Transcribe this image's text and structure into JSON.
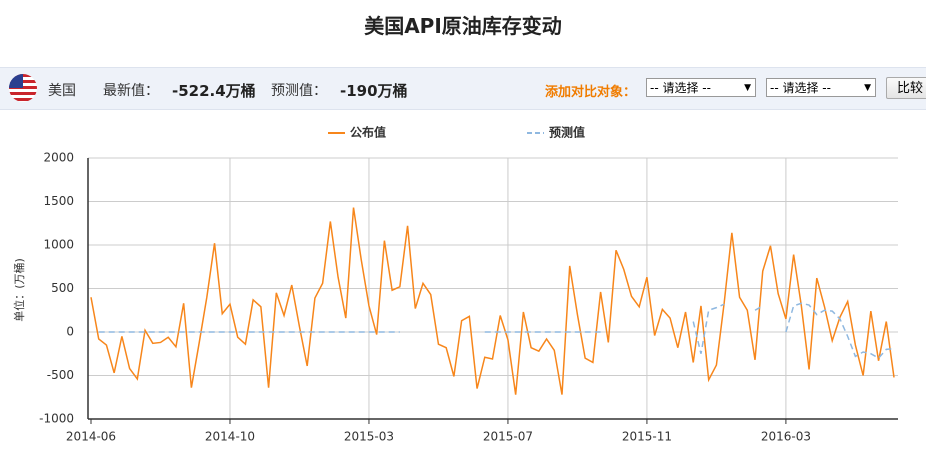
{
  "header": {
    "title": "美国API原油库存变动"
  },
  "info": {
    "country": "美国",
    "latest_label": "最新值：",
    "latest_value": "-522.4万桶",
    "forecast_label": "预测值：",
    "forecast_value": "-190万桶",
    "compare_label": "添加对比对象：",
    "select_1": "-- 请选择 --",
    "select_2": "-- 请选择 --",
    "button": "比较"
  },
  "chart_data": {
    "type": "line",
    "y_label": "单位：(万桶)",
    "ylim": [
      -1000,
      2000
    ],
    "yticks": [
      -1000,
      -500,
      0,
      500,
      1000,
      1500,
      2000
    ],
    "grid": true,
    "legend": "top",
    "categories": [
      "2014-06",
      null,
      null,
      null,
      null,
      null,
      null,
      null,
      null,
      null,
      null,
      null,
      null,
      null,
      null,
      null,
      null,
      null,
      "2014-10",
      null,
      null,
      null,
      null,
      null,
      null,
      null,
      null,
      null,
      null,
      null,
      null,
      null,
      null,
      null,
      null,
      null,
      "2015-03",
      null,
      null,
      null,
      null,
      null,
      null,
      null,
      null,
      null,
      null,
      null,
      null,
      null,
      null,
      null,
      null,
      null,
      "2015-07",
      null,
      null,
      null,
      null,
      null,
      null,
      null,
      null,
      null,
      null,
      null,
      null,
      null,
      null,
      null,
      null,
      null,
      "2015-11",
      null,
      null,
      null,
      null,
      null,
      null,
      null,
      null,
      null,
      null,
      null,
      null,
      null,
      null,
      null,
      null,
      null,
      "2016-03",
      null,
      null,
      null,
      null,
      null,
      null,
      null,
      null,
      null,
      null,
      null,
      null,
      null,
      null
    ],
    "series": [
      {
        "name": "公布值",
        "color": "#f7861b",
        "dashed": false,
        "values": [
          400,
          -80,
          -150,
          -470,
          -50,
          -420,
          -540,
          20,
          -130,
          -120,
          -60,
          -170,
          330,
          -640,
          -130,
          400,
          1020,
          210,
          320,
          -60,
          -140,
          370,
          290,
          -640,
          450,
          190,
          540,
          60,
          -390,
          390,
          560,
          1270,
          630,
          160,
          1430,
          830,
          300,
          -30,
          1050,
          480,
          520,
          1220,
          270,
          560,
          430,
          -140,
          -180,
          -510,
          130,
          180,
          -650,
          -290,
          -310,
          190,
          -90,
          -720,
          230,
          -180,
          -220,
          -80,
          -210,
          -720,
          760,
          200,
          -300,
          -350,
          460,
          -120,
          940,
          720,
          410,
          290,
          630,
          -40,
          260,
          160,
          -180,
          230,
          -350,
          300,
          -550,
          -380,
          330,
          1140,
          400,
          250,
          -320,
          700,
          990,
          440,
          150,
          890,
          300,
          -430,
          620,
          290,
          -100,
          170,
          350,
          -150,
          -500,
          240,
          -330,
          120,
          -522.4
        ]
      },
      {
        "name": "预测值",
        "color": "#8fb8e0",
        "dashed": true,
        "values": [
          null,
          0,
          0,
          0,
          0,
          0,
          0,
          0,
          0,
          0,
          0,
          0,
          0,
          0,
          0,
          0,
          0,
          0,
          0,
          0,
          0,
          0,
          0,
          0,
          0,
          0,
          0,
          0,
          0,
          0,
          0,
          0,
          0,
          0,
          0,
          0,
          0,
          0,
          0,
          0,
          0,
          null,
          null,
          null,
          null,
          null,
          null,
          null,
          null,
          null,
          null,
          0,
          0,
          0,
          0,
          0,
          0,
          0,
          0,
          0,
          0,
          0,
          0,
          0,
          0,
          0,
          0,
          null,
          null,
          null,
          null,
          null,
          null,
          null,
          null,
          null,
          null,
          null,
          120,
          -250,
          250,
          280,
          320,
          null,
          null,
          null,
          250,
          300,
          null,
          null,
          0,
          300,
          330,
          310,
          200,
          250,
          240,
          150,
          -50,
          -280,
          -230,
          -250,
          -300,
          -200,
          -190
        ]
      }
    ]
  }
}
